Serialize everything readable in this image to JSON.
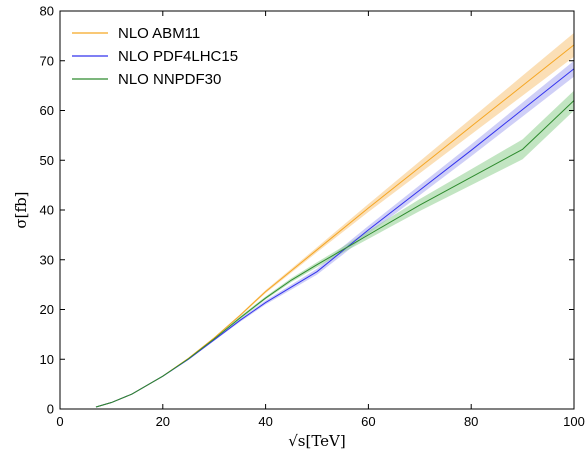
{
  "chart_data": {
    "type": "line",
    "xlabel": "√s[TeV]",
    "ylabel": "σ[fb]",
    "xlim": [
      0,
      100
    ],
    "ylim": [
      0,
      80
    ],
    "xticks": [
      0,
      20,
      40,
      60,
      80,
      100
    ],
    "yticks": [
      0,
      10,
      20,
      30,
      40,
      50,
      60,
      70,
      80
    ],
    "grid": false,
    "legend_position": "top-left",
    "series": [
      {
        "name": "NLO ABM11",
        "color": "#f5a623",
        "band_color": "#f7c57a",
        "x": [
          7,
          10,
          14,
          20,
          25,
          30,
          35,
          40,
          50,
          60,
          70,
          80,
          90,
          100
        ],
        "y": [
          0.4,
          1.3,
          3.0,
          6.6,
          10.2,
          14.3,
          18.8,
          23.6,
          32.0,
          40.4,
          48.6,
          56.8,
          65.0,
          73.2
        ],
        "band_lo": [
          0.4,
          1.3,
          3.0,
          6.6,
          10.2,
          14.2,
          18.6,
          23.3,
          31.5,
          39.6,
          47.4,
          55.2,
          63.0,
          70.8
        ],
        "band_hi": [
          0.4,
          1.3,
          3.0,
          6.6,
          10.3,
          14.4,
          19.0,
          23.9,
          32.5,
          41.2,
          49.8,
          58.4,
          67.0,
          75.6
        ]
      },
      {
        "name": "NLO PDF4LHC15",
        "color": "#3333ee",
        "band_color": "#a8a8f0",
        "x": [
          7,
          10,
          14,
          20,
          25,
          30,
          35,
          40,
          45,
          50,
          55,
          60,
          70,
          80,
          90,
          100
        ],
        "y": [
          0.4,
          1.3,
          3.0,
          6.6,
          10.0,
          13.9,
          17.8,
          21.4,
          24.5,
          27.6,
          31.8,
          36.0,
          44.0,
          52.0,
          60.2,
          68.4
        ],
        "band_lo": [
          0.4,
          1.3,
          3.0,
          6.5,
          9.9,
          13.7,
          17.5,
          21.0,
          24.0,
          27.0,
          31.0,
          35.2,
          43.0,
          50.8,
          58.8,
          66.8
        ],
        "band_hi": [
          0.4,
          1.3,
          3.0,
          6.7,
          10.1,
          14.1,
          18.1,
          21.8,
          25.0,
          28.2,
          32.6,
          36.8,
          45.0,
          53.2,
          61.6,
          70.0
        ]
      },
      {
        "name": "NLO NNPDF30",
        "color": "#2e8b2e",
        "band_color": "#8fd08f",
        "x": [
          7,
          10,
          14,
          20,
          25,
          30,
          35,
          40,
          45,
          50,
          55,
          60,
          70,
          80,
          90,
          100
        ],
        "y": [
          0.4,
          1.3,
          3.0,
          6.6,
          10.1,
          14.1,
          18.3,
          22.3,
          25.9,
          29.0,
          32.0,
          35.0,
          41.0,
          46.6,
          52.2,
          62.0
        ],
        "band_lo": [
          0.4,
          1.3,
          3.0,
          6.5,
          10.0,
          13.9,
          18.0,
          22.0,
          25.5,
          28.5,
          31.4,
          34.2,
          39.8,
          45.0,
          50.2,
          60.0
        ],
        "band_hi": [
          0.4,
          1.3,
          3.0,
          6.7,
          10.2,
          14.3,
          18.6,
          22.6,
          26.3,
          29.5,
          32.6,
          35.8,
          42.2,
          48.2,
          54.2,
          64.0
        ]
      }
    ]
  }
}
